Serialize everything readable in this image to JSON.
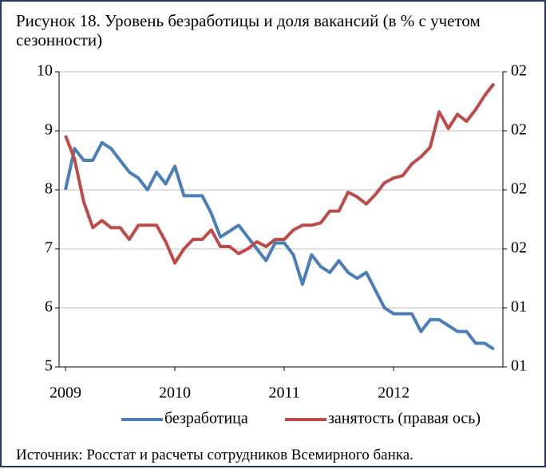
{
  "chart_data": {
    "type": "line",
    "title": "Рисунок 18. Уровень безработицы и доля вакансий (в % с учетом сезонности)",
    "source": "Источник: Росстат и расчеты сотрудников Всемирного банка.",
    "categories": [
      "2009",
      null,
      null,
      null,
      null,
      null,
      null,
      null,
      null,
      null,
      null,
      null,
      "2010",
      null,
      null,
      null,
      null,
      null,
      null,
      null,
      null,
      null,
      null,
      null,
      "2011",
      null,
      null,
      null,
      null,
      null,
      null,
      null,
      null,
      null,
      null,
      null,
      "2012",
      null,
      null,
      null,
      null,
      null,
      null,
      null,
      null,
      null,
      null,
      null
    ],
    "ylim": [
      5,
      10
    ],
    "yticks": [
      5,
      6,
      7,
      8,
      9,
      10
    ],
    "y2lim": [
      1.0,
      2.25
    ],
    "y2ticks": [
      {
        "value": 1.0,
        "label": "01"
      },
      {
        "value": 1.25,
        "label": "01"
      },
      {
        "value": 1.5,
        "label": "02"
      },
      {
        "value": 1.75,
        "label": "02"
      },
      {
        "value": 2.0,
        "label": "02"
      },
      {
        "value": 2.25,
        "label": "02"
      }
    ],
    "grid": true,
    "legend": "bottom",
    "series": [
      {
        "name": "безработица",
        "color": "#4a7ebb",
        "values": [
          8.0,
          8.7,
          8.5,
          8.5,
          8.8,
          8.7,
          8.5,
          8.3,
          8.2,
          8.0,
          8.3,
          8.1,
          8.4,
          7.9,
          7.9,
          7.9,
          7.6,
          7.2,
          7.3,
          7.4,
          7.2,
          7.0,
          6.8,
          7.1,
          7.1,
          6.9,
          6.4,
          6.9,
          6.7,
          6.6,
          6.8,
          6.6,
          6.5,
          6.6,
          6.3,
          6.0,
          5.9,
          5.9,
          5.9,
          5.6,
          5.8,
          5.8,
          5.7,
          5.6,
          5.6,
          5.4,
          5.4,
          5.3
        ]
      },
      {
        "name": "занятость (правая ось)",
        "color": "#be4b48",
        "axis": "y2",
        "values": [
          1.98,
          1.88,
          1.7,
          1.59,
          1.62,
          1.59,
          1.59,
          1.54,
          1.6,
          1.6,
          1.6,
          1.53,
          1.44,
          1.5,
          1.54,
          1.54,
          1.58,
          1.51,
          1.51,
          1.48,
          1.5,
          1.53,
          1.51,
          1.54,
          1.54,
          1.58,
          1.6,
          1.6,
          1.61,
          1.66,
          1.66,
          1.74,
          1.72,
          1.69,
          1.73,
          1.78,
          1.8,
          1.81,
          1.86,
          1.89,
          1.93,
          2.08,
          2.01,
          2.07,
          2.04,
          2.09,
          2.15,
          2.2
        ]
      }
    ]
  }
}
